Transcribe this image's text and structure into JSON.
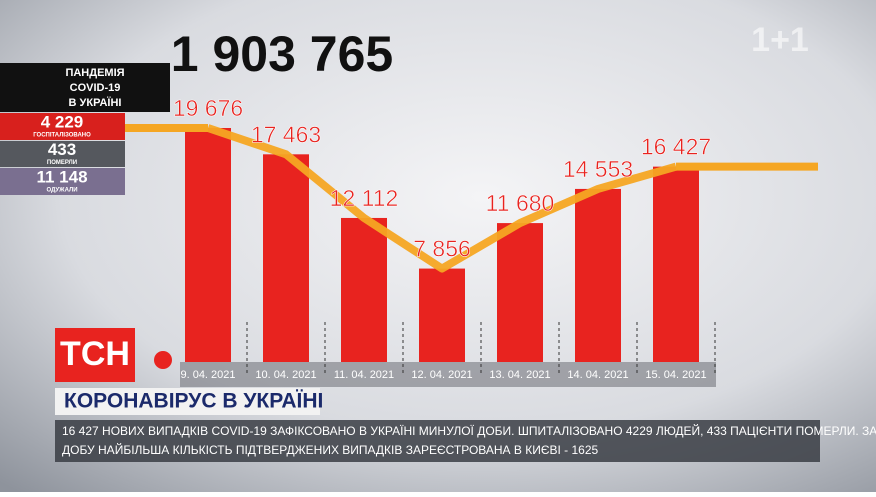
{
  "chart_data": {
    "type": "bar",
    "total": "1 903 765",
    "categories": [
      "9. 04. 2021",
      "10. 04. 2021",
      "11. 04. 2021",
      "12. 04. 2021",
      "13. 04. 2021",
      "14. 04. 2021",
      "15. 04. 2021"
    ],
    "values": [
      19676,
      17463,
      12112,
      7856,
      11680,
      14553,
      16427
    ],
    "value_labels": [
      "19 676",
      "17 463",
      "12 112",
      "7 856",
      "11 680",
      "14 553",
      "16 427"
    ],
    "color": "#e8231f",
    "line_color": "#f5a623"
  },
  "panel": {
    "title": [
      "ПАНДЕМІЯ",
      "COVID-19",
      "В УКРАЇНІ"
    ],
    "rows": [
      [
        "4 229",
        "ГОСПІТАЛІЗОВАНО"
      ],
      [
        "433",
        "ПОМЕРЛИ"
      ],
      [
        "11 148",
        "ОДУЖАЛИ"
      ]
    ]
  },
  "logo": "1+1",
  "show": "ТСН",
  "headline": "КОРОНАВІРУС В УКРАЇНІ",
  "ticker": [
    "16 427 НОВИХ ВИПАДКІВ COVID-19 ЗАФІКСОВАНО В УКРАЇНІ МИНУЛОЇ ДОБИ. ШПИТАЛІЗОВАНО 4229 ЛЮДЕЙ, 433 ПАЦІЄНТИ ПОМЕРЛИ. ЗА ОСТАННЮ",
    "ДОБУ НАЙБІЛЬША КІЛЬКІСТЬ ПІДТВЕРДЖЕНИХ ВИПАДКІВ ЗАРЕЄСТРОВАНА В КИЄВІ - 1625"
  ]
}
